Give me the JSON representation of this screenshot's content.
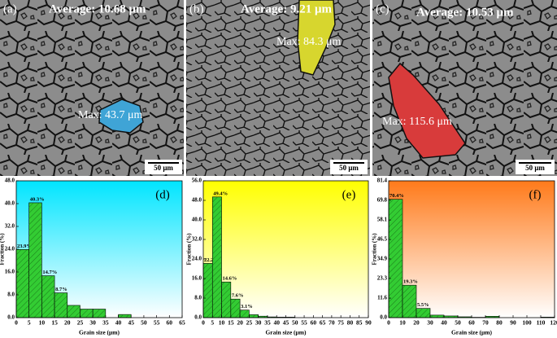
{
  "panels": [
    {
      "label": "(a)",
      "average": "Average: 10.68 μm",
      "max": "Max: 43.7 μm",
      "scale_bar": "50 μm"
    },
    {
      "label": "(b)",
      "average": "Average: 9.21 μm",
      "max": "Max: 84.3 μm",
      "scale_bar": "50 μm"
    },
    {
      "label": "(c)",
      "average": "Average: 10.53 μm",
      "max": "Max: 115.6 μm",
      "scale_bar": "50 μm"
    }
  ],
  "chart_data": [
    {
      "type": "histogram",
      "title": "(d)",
      "xlabel": "Grain size (μm)",
      "ylabel": "Fraction (%)",
      "bins": [
        0,
        5,
        10,
        15,
        20,
        25,
        30,
        35,
        40,
        45
      ],
      "values": [
        23.9,
        40.3,
        14.7,
        8.7,
        4.3,
        3.0,
        3.0,
        0,
        1.1
      ],
      "value_labels": [
        "23.9%",
        "40.3%",
        "14.7%",
        "8.7%",
        null,
        null,
        null,
        null,
        null
      ],
      "color": "#33cc33",
      "background": "#00e5ff",
      "xlim": [
        0,
        65
      ],
      "xticks": [
        0,
        5,
        10,
        15,
        20,
        25,
        30,
        35,
        40,
        45,
        50,
        55,
        60,
        65
      ],
      "ylim": [
        0,
        48
      ],
      "yticks": [
        {
          "value": 0,
          "label": "0.0"
        },
        {
          "value": 8,
          "label": "8.0"
        },
        {
          "value": 16,
          "label": "16.0"
        },
        {
          "value": 24,
          "label": "24.0"
        },
        {
          "value": 32,
          "label": "32.0"
        },
        {
          "value": 40,
          "label": "40.0"
        },
        {
          "value": 48,
          "label": "48.0"
        }
      ]
    },
    {
      "type": "histogram",
      "title": "(e)",
      "xlabel": "Grain size (μm)",
      "ylabel": "Fraction (%)",
      "bins": [
        0,
        5,
        10,
        15,
        20,
        25,
        30,
        35,
        40,
        45,
        50
      ],
      "values": [
        22.2,
        49.4,
        14.6,
        7.6,
        3.1,
        1.2,
        0.6,
        0.3,
        0.2,
        0.2
      ],
      "value_labels": [
        "22.2%",
        "49.4%",
        "14.6%",
        "7.6%",
        "3.1%",
        null,
        null,
        null,
        null,
        null
      ],
      "color": "#33cc33",
      "background": "#ffff00",
      "xlim": [
        0,
        90
      ],
      "xticks": [
        0,
        5,
        10,
        15,
        20,
        25,
        30,
        35,
        40,
        45,
        50,
        55,
        60,
        65,
        70,
        75,
        80,
        85,
        90
      ],
      "ylim": [
        0,
        56
      ],
      "yticks": [
        {
          "value": 0,
          "label": "0.0"
        },
        {
          "value": 8,
          "label": "8.0"
        },
        {
          "value": 16,
          "label": "16.0"
        },
        {
          "value": 24,
          "label": "24.0"
        },
        {
          "value": 32,
          "label": "32.0"
        },
        {
          "value": 40,
          "label": "40.0"
        },
        {
          "value": 48,
          "label": "48.0"
        },
        {
          "value": 56,
          "label": "56.0"
        }
      ]
    },
    {
      "type": "histogram",
      "title": "(f)",
      "xlabel": "Grain size (μm)",
      "ylabel": "Fraction (%)",
      "bins": [
        0,
        10,
        20,
        30,
        40,
        50,
        60,
        70,
        80,
        90,
        100,
        110,
        120
      ],
      "values": [
        70.4,
        19.3,
        5.5,
        1.5,
        1.0,
        0.5,
        0.2,
        0.8,
        0,
        0,
        0,
        0.3
      ],
      "value_labels": [
        "70.4%",
        "19.3%",
        "5.5%",
        null,
        null,
        null,
        null,
        null,
        null,
        null,
        null,
        null
      ],
      "color": "#33cc33",
      "background": "#ff7a1a",
      "xlim": [
        0,
        120
      ],
      "xticks": [
        0,
        10,
        20,
        30,
        40,
        50,
        60,
        70,
        80,
        90,
        100,
        110,
        120
      ],
      "ylim": [
        0,
        81.4
      ],
      "yticks": [
        {
          "value": 0,
          "label": "0.0"
        },
        11.6,
        23.3,
        34.9,
        46.5,
        58.1,
        69.8,
        81.4
      ]
    }
  ]
}
